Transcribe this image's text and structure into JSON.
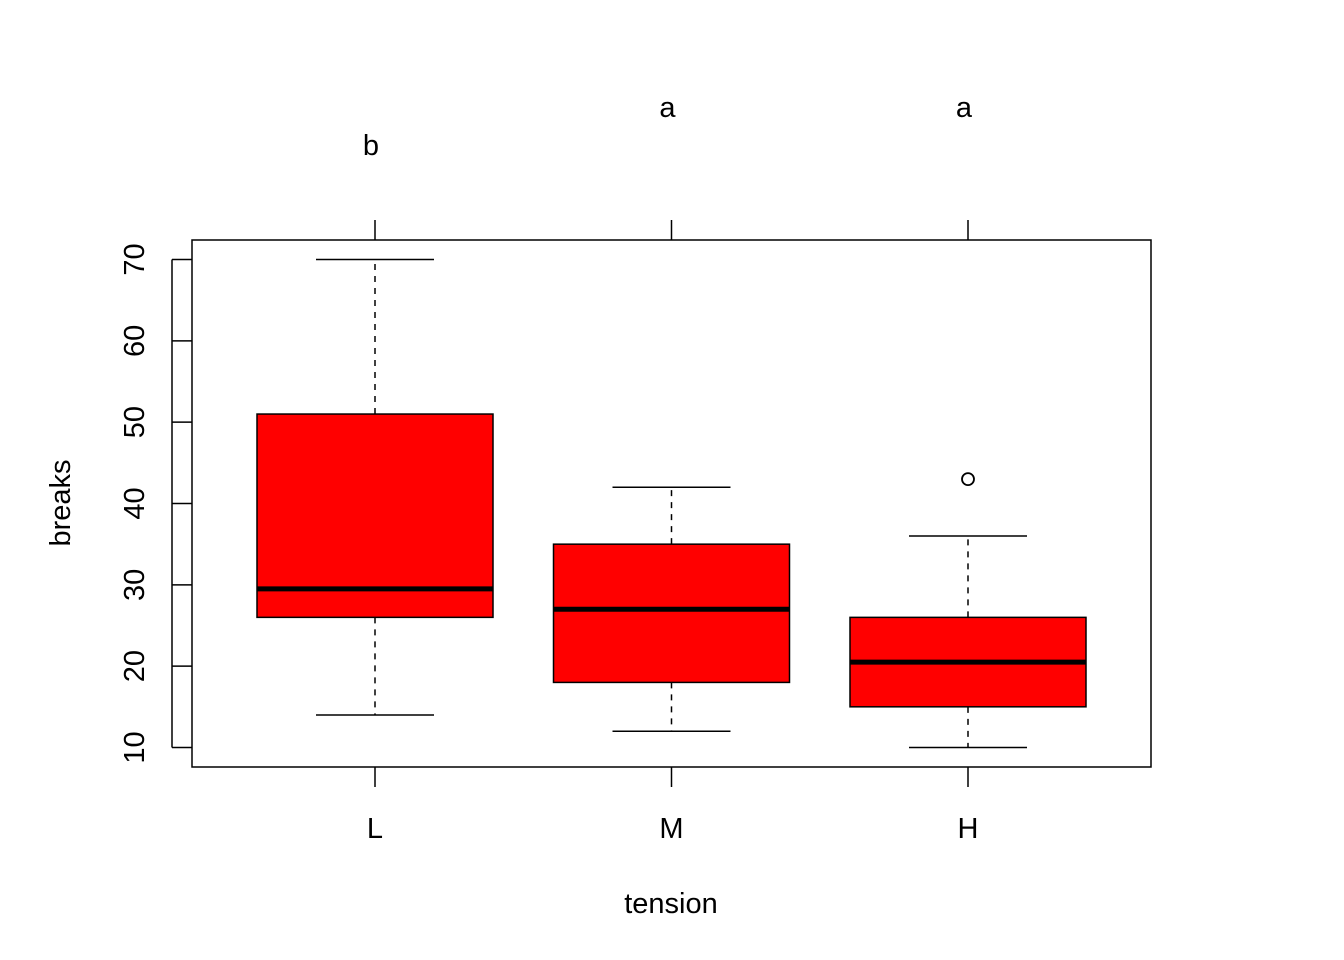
{
  "chart_data": {
    "type": "boxplot",
    "title": "",
    "xlabel": "tension",
    "ylabel": "breaks",
    "ylim": [
      7.6,
      72.4
    ],
    "yticks": [
      10,
      20,
      30,
      40,
      50,
      60,
      70
    ],
    "ytick_labels": [
      "10",
      "20",
      "30",
      "40",
      "50",
      "60",
      "70"
    ],
    "categories": [
      "L",
      "M",
      "H"
    ],
    "group_letters": [
      "b",
      "a",
      "a"
    ],
    "box_color": "#ff0000",
    "grid": false,
    "boxes": [
      {
        "category": "L",
        "whisker_low": 14,
        "q1": 26,
        "median": 29.5,
        "q3": 51,
        "whisker_high": 70,
        "outliers": []
      },
      {
        "category": "M",
        "whisker_low": 12,
        "q1": 18,
        "median": 27,
        "q3": 35,
        "whisker_high": 42,
        "outliers": []
      },
      {
        "category": "H",
        "whisker_low": 10,
        "q1": 15,
        "median": 20.5,
        "q3": 26,
        "whisker_high": 36,
        "outliers": [
          43
        ]
      }
    ]
  }
}
